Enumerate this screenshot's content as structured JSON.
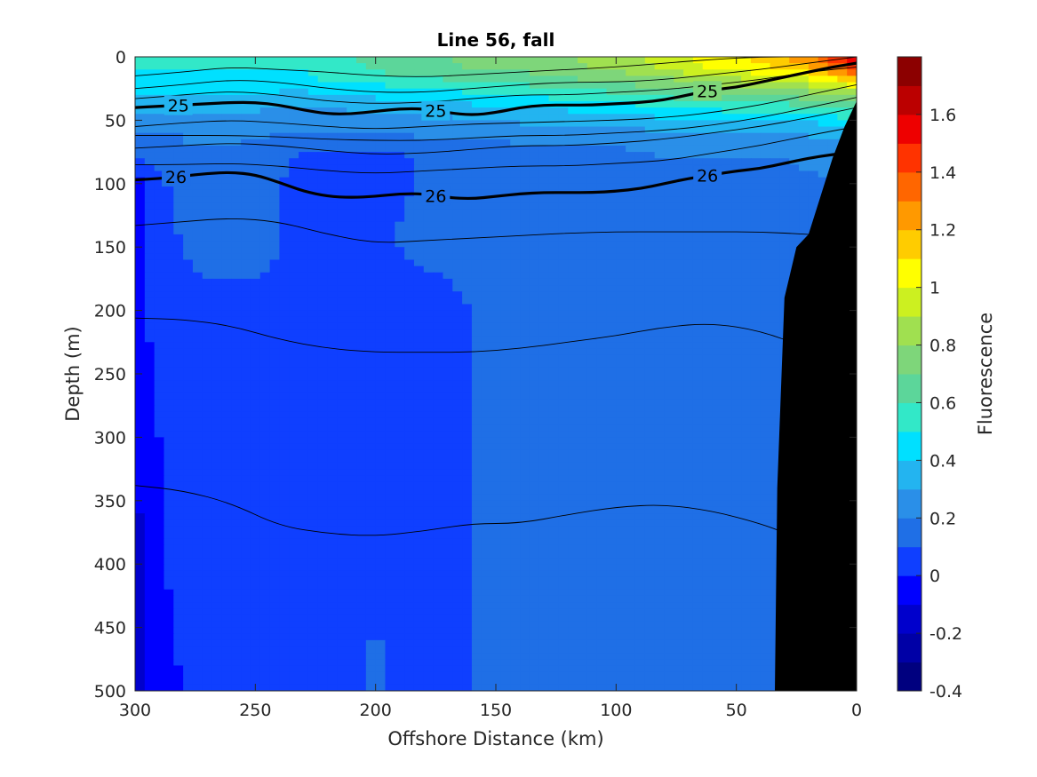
{
  "chart_data": {
    "type": "heatmap",
    "subtype": "filled-contour section with density contours",
    "title": "Line 56, fall",
    "xlabel": "Offshore Distance (km)",
    "ylabel": "Depth (m)",
    "xlim": [
      300,
      0
    ],
    "x_reversed": true,
    "ylim": [
      0,
      500
    ],
    "y_reversed": true,
    "x_ticks": [
      300,
      250,
      200,
      150,
      100,
      50,
      0
    ],
    "y_ticks": [
      0,
      50,
      100,
      150,
      200,
      250,
      300,
      350,
      400,
      450,
      500
    ],
    "colorbar": {
      "label": "Fluorescence",
      "range": [
        -0.4,
        1.8
      ],
      "ticks": [
        -0.4,
        -0.2,
        0,
        0.2,
        0.4,
        0.6,
        0.8,
        1,
        1.2,
        1.4,
        1.6
      ],
      "levels": [
        -0.4,
        -0.3,
        -0.2,
        -0.1,
        0,
        0.1,
        0.2,
        0.3,
        0.4,
        0.5,
        0.6,
        0.7,
        0.8,
        0.9,
        1.0,
        1.1,
        1.2,
        1.3,
        1.4,
        1.5,
        1.6,
        1.7,
        1.8
      ],
      "colors": [
        "#00007f",
        "#0000a6",
        "#0000cc",
        "#0000ff",
        "#0f3fff",
        "#1f6fe6",
        "#2a8fe8",
        "#23b4f0",
        "#00e0ff",
        "#32e8c8",
        "#5cd69a",
        "#7ed67a",
        "#a0e050",
        "#ccf020",
        "#ffff00",
        "#ffcc00",
        "#ff9900",
        "#ff6600",
        "#ff3300",
        "#ee0000",
        "#bb0000",
        "#8c0000"
      ]
    },
    "fluorescence_field": {
      "x": [
        300,
        290,
        280,
        270,
        260,
        250,
        240,
        230,
        220,
        210,
        200,
        190,
        180,
        170,
        160,
        150,
        140,
        130,
        120,
        110,
        100,
        90,
        80,
        70,
        60,
        50,
        40,
        30,
        20,
        10,
        0
      ],
      "depth": [
        0,
        10,
        20,
        30,
        40,
        50,
        60,
        70,
        80,
        100,
        130,
        150,
        200,
        300,
        400,
        500
      ],
      "values": [
        [
          0.55,
          0.55,
          0.55,
          0.55,
          0.55,
          0.55,
          0.5,
          0.55,
          0.6,
          0.6,
          0.65,
          0.7,
          0.7,
          0.7,
          0.75,
          0.75,
          0.8,
          0.8,
          0.8,
          0.85,
          0.85,
          0.9,
          0.95,
          1.0,
          1.05,
          1.1,
          1.15,
          1.2,
          1.3,
          1.45,
          1.6
        ],
        [
          0.5,
          0.5,
          0.5,
          0.5,
          0.5,
          0.5,
          0.5,
          0.5,
          0.55,
          0.55,
          0.6,
          0.65,
          0.65,
          0.65,
          0.7,
          0.7,
          0.7,
          0.75,
          0.75,
          0.8,
          0.8,
          0.85,
          0.9,
          0.95,
          1.0,
          1.0,
          1.05,
          1.1,
          1.15,
          1.3,
          1.4
        ],
        [
          0.45,
          0.45,
          0.45,
          0.45,
          0.45,
          0.45,
          0.45,
          0.45,
          0.5,
          0.5,
          0.5,
          0.55,
          0.55,
          0.6,
          0.6,
          0.6,
          0.6,
          0.65,
          0.65,
          0.7,
          0.7,
          0.75,
          0.75,
          0.8,
          0.85,
          0.85,
          0.9,
          0.9,
          0.95,
          1.0,
          1.1
        ],
        [
          0.38,
          0.4,
          0.4,
          0.4,
          0.4,
          0.4,
          0.38,
          0.38,
          0.4,
          0.42,
          0.42,
          0.45,
          0.45,
          0.45,
          0.48,
          0.5,
          0.5,
          0.52,
          0.55,
          0.55,
          0.58,
          0.6,
          0.62,
          0.65,
          0.68,
          0.7,
          0.7,
          0.72,
          0.75,
          0.78,
          0.85
        ],
        [
          0.32,
          0.32,
          0.32,
          0.32,
          0.32,
          0.32,
          0.3,
          0.3,
          0.3,
          0.32,
          0.32,
          0.35,
          0.35,
          0.35,
          0.38,
          0.38,
          0.4,
          0.42,
          0.42,
          0.45,
          0.45,
          0.48,
          0.5,
          0.5,
          0.52,
          0.55,
          0.55,
          0.55,
          0.58,
          0.6,
          0.65
        ],
        [
          0.25,
          0.25,
          0.25,
          0.25,
          0.26,
          0.26,
          0.25,
          0.25,
          0.25,
          0.25,
          0.26,
          0.28,
          0.28,
          0.28,
          0.3,
          0.3,
          0.32,
          0.32,
          0.32,
          0.35,
          0.35,
          0.35,
          0.38,
          0.38,
          0.38,
          0.4,
          0.4,
          0.4,
          0.42,
          0.45,
          0.48
        ],
        [
          0.2,
          0.2,
          0.2,
          0.22,
          0.22,
          0.22,
          0.2,
          0.2,
          0.2,
          0.2,
          0.2,
          0.22,
          0.22,
          0.22,
          0.22,
          0.22,
          0.25,
          0.25,
          0.25,
          0.25,
          0.25,
          0.28,
          0.28,
          0.28,
          0.3,
          0.3,
          0.3,
          0.3,
          0.32,
          0.32,
          0.35
        ],
        [
          0.15,
          0.18,
          0.2,
          0.2,
          0.2,
          0.18,
          0.15,
          0.12,
          0.12,
          0.15,
          0.15,
          0.12,
          0.15,
          0.18,
          0.18,
          0.18,
          0.2,
          0.2,
          0.2,
          0.2,
          0.2,
          0.22,
          0.22,
          0.22,
          0.22,
          0.22,
          0.22,
          0.25,
          0.25,
          0.25,
          0.28
        ],
        [
          0.08,
          0.15,
          0.18,
          0.18,
          0.18,
          0.15,
          0.12,
          0.08,
          0.08,
          0.08,
          0.08,
          0.08,
          0.12,
          0.15,
          0.15,
          0.15,
          0.18,
          0.18,
          0.18,
          0.18,
          0.18,
          0.18,
          0.2,
          0.2,
          0.2,
          0.2,
          0.2,
          0.2,
          0.22,
          0.22,
          0.25
        ],
        [
          -0.05,
          0.05,
          0.12,
          0.15,
          0.15,
          0.12,
          0.1,
          0.08,
          0.08,
          0.08,
          0.08,
          0.08,
          0.12,
          0.14,
          0.15,
          0.15,
          0.15,
          0.15,
          0.15,
          0.15,
          0.15,
          0.15,
          0.15,
          0.15,
          0.15,
          0.15,
          0.15,
          0.18,
          0.18,
          0.2,
          0.2
        ],
        [
          -0.05,
          0.05,
          0.12,
          0.13,
          0.14,
          0.12,
          0.1,
          0.08,
          0.08,
          0.08,
          0.08,
          0.1,
          0.12,
          0.14,
          0.14,
          0.15,
          0.15,
          0.15,
          0.15,
          0.15,
          0.15,
          0.15,
          0.15,
          0.15,
          0.15,
          0.15,
          0.15,
          0.15,
          0.18,
          0.2,
          0.2
        ],
        [
          -0.05,
          0.05,
          0.1,
          0.12,
          0.12,
          0.12,
          0.1,
          0.08,
          0.08,
          0.08,
          0.08,
          0.1,
          0.11,
          0.12,
          0.13,
          0.15,
          0.15,
          0.15,
          0.15,
          0.15,
          0.15,
          0.15,
          0.15,
          0.15,
          0.15,
          0.15,
          0.15,
          0.15,
          0.15,
          0.15,
          0.15
        ],
        [
          -0.05,
          0.05,
          0.08,
          0.08,
          0.08,
          0.08,
          0.08,
          0.08,
          0.08,
          0.08,
          0.08,
          0.08,
          0.08,
          0.08,
          0.1,
          0.15,
          0.15,
          0.15,
          0.15,
          0.15,
          0.15,
          0.15,
          0.15,
          0.15,
          0.15,
          0.15,
          0.15,
          0.15,
          0.15,
          0.15,
          0.15
        ],
        [
          -0.08,
          0.0,
          0.08,
          0.08,
          0.08,
          0.08,
          0.08,
          0.08,
          0.08,
          0.08,
          0.08,
          0.08,
          0.08,
          0.08,
          0.09,
          0.15,
          0.15,
          0.15,
          0.15,
          0.15,
          0.15,
          0.15,
          0.15,
          0.15,
          0.15,
          0.15,
          0.15,
          0.15,
          0.15,
          0.15,
          0.15
        ],
        [
          -0.15,
          -0.02,
          0.05,
          0.08,
          0.08,
          0.08,
          0.08,
          0.08,
          0.08,
          0.08,
          0.08,
          0.08,
          0.08,
          0.08,
          0.09,
          0.15,
          0.15,
          0.15,
          0.15,
          0.15,
          0.15,
          0.15,
          0.15,
          0.15,
          0.15,
          0.15,
          0.15,
          0.15,
          0.15,
          0.15,
          0.15
        ],
        [
          -0.15,
          -0.05,
          0.0,
          0.08,
          0.08,
          0.08,
          0.08,
          0.08,
          0.08,
          0.08,
          0.12,
          0.08,
          0.08,
          0.08,
          0.09,
          0.15,
          0.15,
          0.15,
          0.15,
          0.15,
          0.15,
          0.15,
          0.15,
          0.15,
          0.15,
          0.15,
          0.15,
          0.15,
          0.15,
          0.15,
          0.15
        ]
      ]
    },
    "bathymetry": {
      "x": [
        34,
        33,
        30,
        25,
        20,
        15,
        10,
        5,
        0
      ],
      "depth": [
        500,
        340,
        190,
        150,
        140,
        110,
        80,
        55,
        35
      ]
    },
    "density_contours": [
      {
        "label": "",
        "bold": false,
        "x": [
          300,
          280,
          260,
          240,
          220,
          200,
          180,
          160,
          140,
          120,
          100,
          80,
          60,
          40,
          20,
          0
        ],
        "depth": [
          15,
          12,
          8,
          10,
          12,
          15,
          16,
          14,
          12,
          10,
          8,
          5,
          2,
          0,
          0,
          0
        ]
      },
      {
        "label": "",
        "bold": false,
        "x": [
          300,
          280,
          260,
          240,
          220,
          200,
          180,
          160,
          140,
          120,
          100,
          80,
          60,
          40,
          20,
          0
        ],
        "depth": [
          25,
          22,
          18,
          20,
          25,
          28,
          28,
          25,
          22,
          20,
          20,
          18,
          14,
          10,
          5,
          0
        ]
      },
      {
        "label": "",
        "bold": false,
        "x": [
          300,
          280,
          260,
          240,
          220,
          200,
          180,
          160,
          140,
          120,
          100,
          80,
          60,
          40,
          20,
          0
        ],
        "depth": [
          33,
          30,
          27,
          30,
          35,
          37,
          36,
          33,
          30,
          30,
          28,
          26,
          22,
          18,
          12,
          8
        ]
      },
      {
        "label": "25",
        "bold": true,
        "x": [
          300,
          290,
          280,
          270,
          260,
          250,
          240,
          230,
          220,
          210,
          200,
          190,
          180,
          170,
          160,
          150,
          140,
          130,
          120,
          110,
          100,
          90,
          80,
          70,
          60,
          50,
          40,
          30,
          20,
          10,
          0
        ],
        "depth": [
          40,
          39,
          38,
          37,
          36,
          36,
          38,
          42,
          45,
          45,
          43,
          41,
          41,
          44,
          46,
          44,
          40,
          38,
          38,
          38,
          37,
          36,
          34,
          30,
          26,
          24,
          20,
          16,
          12,
          8,
          5
        ]
      },
      {
        "label": "",
        "bold": false,
        "x": [
          300,
          280,
          260,
          240,
          220,
          200,
          180,
          160,
          140,
          120,
          100,
          80,
          60,
          40,
          20,
          0
        ],
        "depth": [
          55,
          52,
          50,
          52,
          55,
          57,
          55,
          53,
          52,
          51,
          50,
          48,
          44,
          38,
          30,
          22
        ]
      },
      {
        "label": "",
        "bold": false,
        "x": [
          300,
          280,
          260,
          240,
          220,
          200,
          180,
          160,
          140,
          120,
          100,
          80,
          60,
          40,
          20,
          0
        ],
        "depth": [
          62,
          62,
          62,
          63,
          65,
          66,
          66,
          64,
          62,
          62,
          60,
          58,
          54,
          48,
          40,
          32
        ]
      },
      {
        "label": "",
        "bold": false,
        "x": [
          300,
          280,
          260,
          240,
          220,
          200,
          180,
          160,
          140,
          120,
          100,
          80,
          60,
          40,
          20,
          0
        ],
        "depth": [
          72,
          70,
          68,
          70,
          74,
          77,
          76,
          73,
          70,
          70,
          68,
          65,
          60,
          55,
          48,
          40
        ]
      },
      {
        "label": "",
        "bold": false,
        "x": [
          300,
          280,
          260,
          240,
          220,
          200,
          180,
          160,
          140,
          120,
          100,
          80,
          60,
          40,
          20,
          0
        ],
        "depth": [
          85,
          85,
          84,
          86,
          90,
          92,
          90,
          88,
          86,
          86,
          84,
          82,
          76,
          70,
          62,
          55
        ]
      },
      {
        "label": "26",
        "bold": true,
        "x": [
          300,
          290,
          280,
          270,
          260,
          250,
          240,
          230,
          220,
          210,
          200,
          190,
          180,
          170,
          160,
          150,
          140,
          130,
          120,
          110,
          100,
          90,
          80,
          70,
          60,
          50,
          40,
          30,
          20,
          10,
          0
        ],
        "depth": [
          97,
          96,
          94,
          92,
          91,
          93,
          99,
          106,
          110,
          111,
          110,
          108,
          108,
          111,
          112,
          110,
          108,
          107,
          107,
          107,
          106,
          104,
          100,
          96,
          93,
          90,
          88,
          84,
          80,
          77,
          75
        ]
      },
      {
        "label": "",
        "bold": false,
        "x": [
          300,
          280,
          260,
          240,
          220,
          200,
          180,
          160,
          140,
          120,
          100,
          80,
          60,
          40,
          20
        ],
        "depth": [
          133,
          130,
          127,
          130,
          140,
          147,
          145,
          143,
          141,
          139,
          138,
          138,
          138,
          138,
          140
        ]
      },
      {
        "label": "",
        "bold": false,
        "x": [
          300,
          280,
          260,
          240,
          220,
          200,
          180,
          160,
          140,
          120,
          100,
          80,
          60,
          40,
          20,
          16
        ],
        "depth": [
          206,
          207,
          212,
          223,
          230,
          233,
          233,
          233,
          230,
          225,
          220,
          213,
          210,
          216,
          230,
          238
        ]
      },
      {
        "label": "",
        "bold": false,
        "x": [
          300,
          280,
          260,
          240,
          220,
          200,
          180,
          160,
          140,
          120,
          100,
          80,
          60,
          40,
          29
        ],
        "depth": [
          338,
          342,
          352,
          370,
          376,
          378,
          374,
          368,
          368,
          361,
          355,
          353,
          358,
          368,
          376
        ]
      }
    ]
  }
}
